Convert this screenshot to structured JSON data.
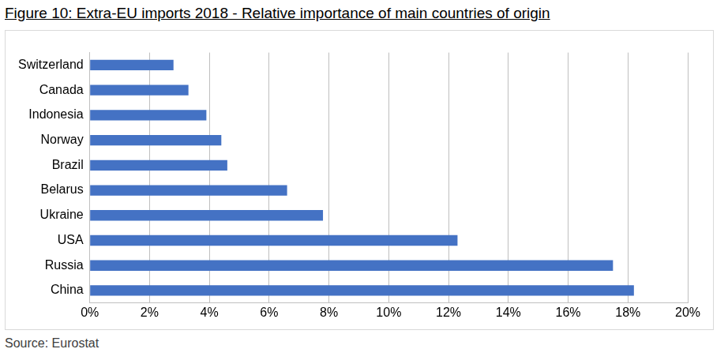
{
  "chart_data": {
    "type": "bar",
    "orientation": "horizontal",
    "title": "Figure 10: Extra-EU imports 2018 - Relative importance of main countries of origin",
    "source": "Source: Eurostat",
    "categories": [
      "Switzerland",
      "Canada",
      "Indonesia",
      "Norway",
      "Brazil",
      "Belarus",
      "Ukraine",
      "USA",
      "Russia",
      "China"
    ],
    "values": [
      2.8,
      3.3,
      3.9,
      4.4,
      4.6,
      6.6,
      7.8,
      12.3,
      17.5,
      18.2
    ],
    "color": "#4472c4",
    "xlim": [
      0,
      20
    ],
    "xticks": [
      {
        "value": 0,
        "label": "0%"
      },
      {
        "value": 2,
        "label": "2%"
      },
      {
        "value": 4,
        "label": "4%"
      },
      {
        "value": 6,
        "label": "6%"
      },
      {
        "value": 8,
        "label": "8%"
      },
      {
        "value": 10,
        "label": "10%"
      },
      {
        "value": 12,
        "label": "12%"
      },
      {
        "value": 14,
        "label": "14%"
      },
      {
        "value": 16,
        "label": "16%"
      },
      {
        "value": 18,
        "label": "18%"
      },
      {
        "value": 20,
        "label": "20%"
      }
    ],
    "grid": true
  }
}
